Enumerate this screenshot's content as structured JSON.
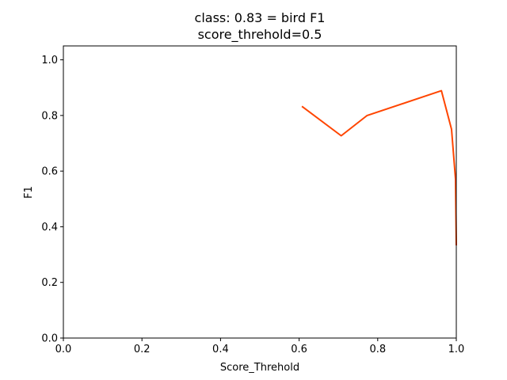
{
  "chart_data": {
    "type": "line",
    "title": "class: 0.83 = bird F1",
    "subtitle": "score_threhold=0.5",
    "xlabel": "Score_Threhold",
    "ylabel": "F1",
    "xlim": [
      0.0,
      1.0
    ],
    "ylim": [
      0.0,
      1.05
    ],
    "x_ticks": [
      "0.0",
      "0.2",
      "0.4",
      "0.6",
      "0.8",
      "1.0"
    ],
    "y_ticks": [
      "0.0",
      "0.2",
      "0.4",
      "0.6",
      "0.8",
      "1.0"
    ],
    "grid": false,
    "series": [
      {
        "color": "#ff4500",
        "x": [
          0.607,
          0.707,
          0.773,
          0.962,
          0.988,
          0.998,
          1.0
        ],
        "y": [
          0.833,
          0.727,
          0.8,
          0.889,
          0.75,
          0.571,
          0.333
        ]
      }
    ]
  }
}
